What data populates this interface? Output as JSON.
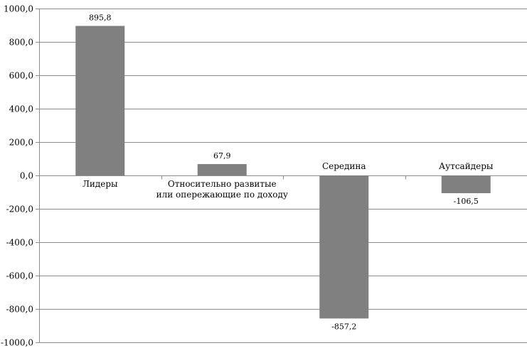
{
  "chart_data": {
    "type": "bar",
    "categories": [
      [
        "Лидеры"
      ],
      [
        "Относительно развитые",
        "или опережающие по доходу"
      ],
      [
        "Середина"
      ],
      [
        "Аутсайдеры"
      ]
    ],
    "values": [
      895.8,
      67.9,
      -857.2,
      -106.5
    ],
    "value_labels": [
      "895,8",
      "67,9",
      "-857,2",
      "-106,5"
    ],
    "ylim": [
      -1000,
      1000
    ],
    "yticks": [
      1000,
      800,
      600,
      400,
      200,
      0,
      -200,
      -400,
      -600,
      -800,
      -1000
    ],
    "ytick_labels": [
      "1000,0",
      "800,0",
      "600,0",
      "400,0",
      "200,0",
      "0,0",
      "-200,0",
      "-400,0",
      "-600,0",
      "-800,0",
      "-1000,0"
    ],
    "grid": true,
    "bar_color": "#808080",
    "title": "",
    "xlabel": "",
    "ylabel": ""
  }
}
